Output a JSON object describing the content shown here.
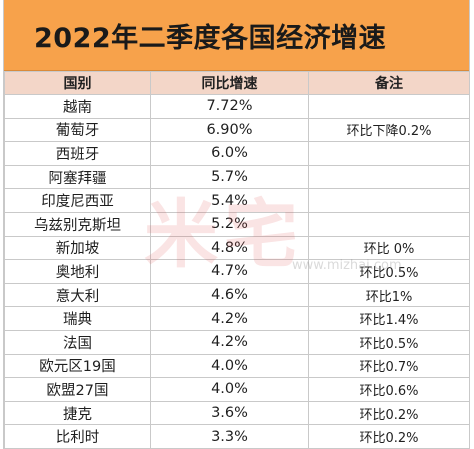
{
  "title": "2022年二季度各国经济增速",
  "headers": {
    "country": "国别",
    "growth": "同比增速",
    "note": "备注"
  },
  "rows": [
    {
      "country": "越南",
      "growth": "7.72%",
      "note": ""
    },
    {
      "country": "葡萄牙",
      "growth": "6.90%",
      "note": "环比下降0.2%"
    },
    {
      "country": "西班牙",
      "growth": "6.0%",
      "note": ""
    },
    {
      "country": "阿塞拜疆",
      "growth": "5.7%",
      "note": ""
    },
    {
      "country": "印度尼西亚",
      "growth": "5.4%",
      "note": ""
    },
    {
      "country": "乌兹别克斯坦",
      "growth": "5.2%",
      "note": ""
    },
    {
      "country": "新加坡",
      "growth": "4.8%",
      "note": "环比 0%"
    },
    {
      "country": "奥地利",
      "growth": "4.7%",
      "note": "环比0.5%"
    },
    {
      "country": "意大利",
      "growth": "4.6%",
      "note": "环比1%"
    },
    {
      "country": "瑞典",
      "growth": "4.2%",
      "note": "环比1.4%"
    },
    {
      "country": "法国",
      "growth": "4.2%",
      "note": "环比0.5%"
    },
    {
      "country": "欧元区19国",
      "growth": "4.0%",
      "note": "环比0.7%"
    },
    {
      "country": "欧盟27国",
      "growth": "4.0%",
      "note": "环比0.6%"
    },
    {
      "country": "捷克",
      "growth": "3.6%",
      "note": "环比0.2%"
    },
    {
      "country": "比利时",
      "growth": "3.3%",
      "note": "环比0.2%"
    }
  ],
  "watermark": {
    "text": "米宅",
    "url": "www.mizhai.com"
  },
  "colors": {
    "title_bg": "#f7a24b",
    "header_bg": "#f3d6c8"
  }
}
